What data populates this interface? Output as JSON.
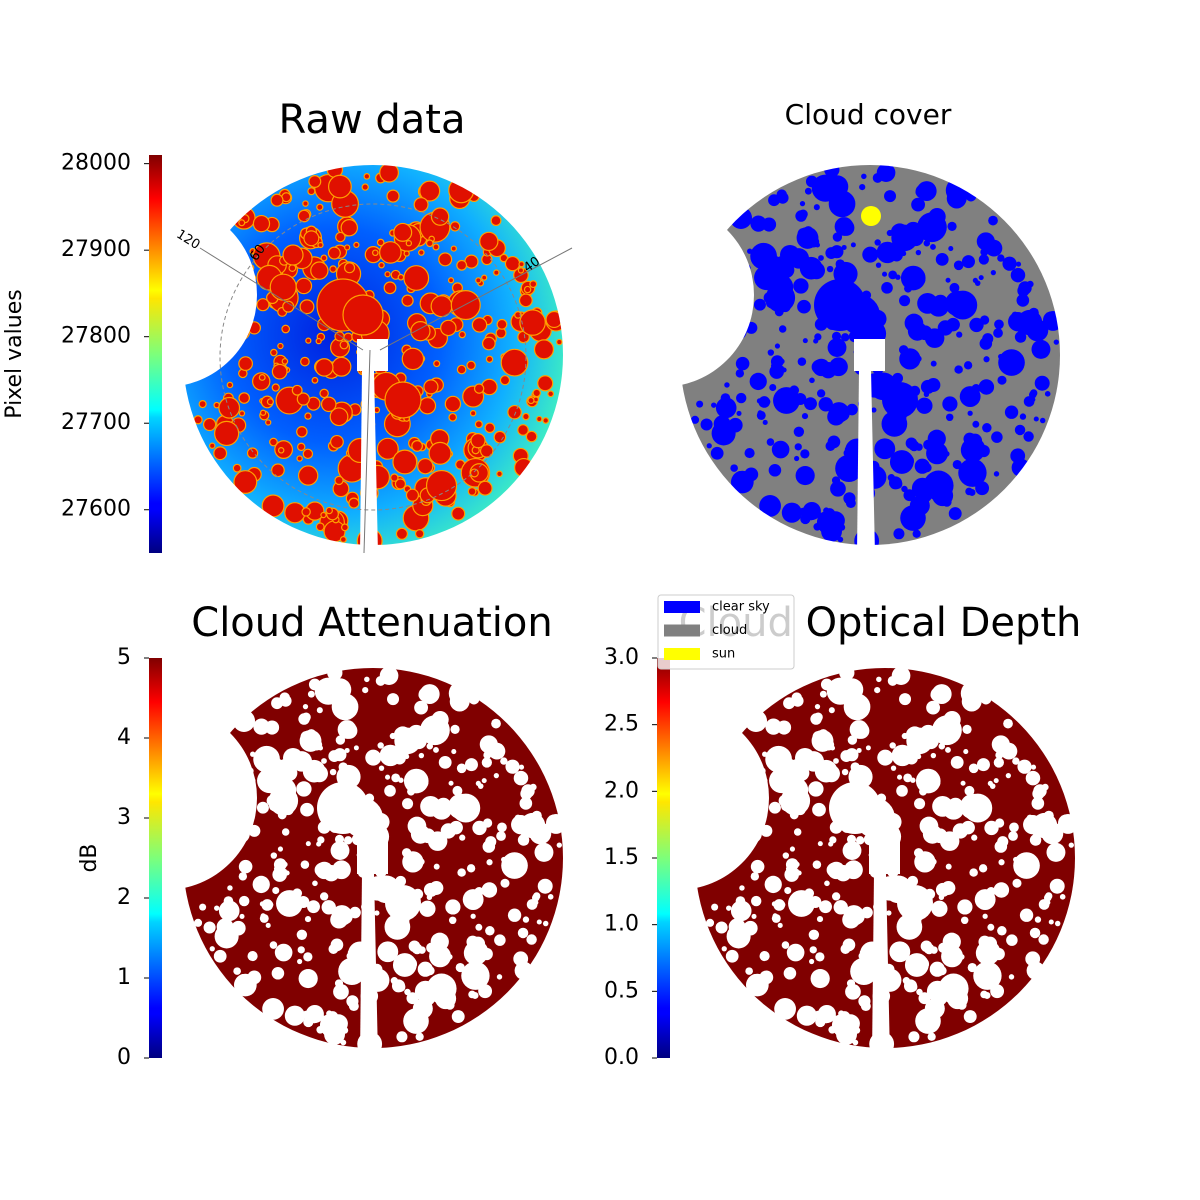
{
  "chart_data": [
    {
      "type": "image",
      "title": "Raw data",
      "colorbar": {
        "label": "Pixel values",
        "colormap": "jet",
        "ylim": [
          27550,
          28010
        ],
        "yticks": [
          27600,
          27700,
          27800,
          27900,
          28000
        ]
      },
      "annotations": [
        "120",
        "60",
        "40"
      ]
    },
    {
      "type": "image",
      "title": "Cloud cover",
      "series": [
        {
          "name": "clear sky",
          "color": "#0000ff"
        },
        {
          "name": "cloud",
          "color": "#808080"
        },
        {
          "name": "sun",
          "color": "#ffff00"
        }
      ]
    },
    {
      "type": "image",
      "title": "Cloud Attenuation",
      "colorbar": {
        "label": "dB",
        "colormap": "jet",
        "ylim": [
          0,
          5
        ],
        "yticks": [
          0,
          1,
          2,
          3,
          4,
          5
        ]
      }
    },
    {
      "type": "image",
      "title": "Cloud Optical Depth",
      "colorbar": {
        "colormap": "jet",
        "ylim": [
          0,
          3
        ],
        "yticks": [
          {
            "value": 0,
            "label": "0.0"
          },
          0.5,
          {
            "value": 1,
            "label": "1.0"
          },
          1.5,
          {
            "value": 2,
            "label": "2.0"
          },
          2.5,
          {
            "value": 3,
            "label": "3.0"
          }
        ]
      }
    }
  ]
}
